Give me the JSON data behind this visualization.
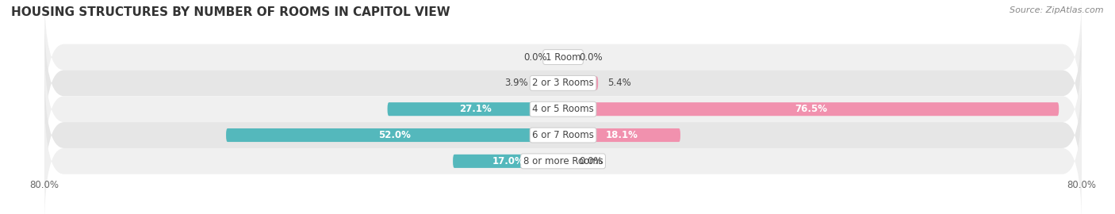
{
  "title": "HOUSING STRUCTURES BY NUMBER OF ROOMS IN CAPITOL VIEW",
  "source": "Source: ZipAtlas.com",
  "categories": [
    "1 Room",
    "2 or 3 Rooms",
    "4 or 5 Rooms",
    "6 or 7 Rooms",
    "8 or more Rooms"
  ],
  "owner_values": [
    0.0,
    3.9,
    27.1,
    52.0,
    17.0
  ],
  "renter_values": [
    0.0,
    5.4,
    76.5,
    18.1,
    0.0
  ],
  "owner_color": "#54b8bc",
  "renter_color": "#f191ae",
  "row_bg_even": "#f0f0f0",
  "row_bg_odd": "#e6e6e6",
  "xlim_min": -80,
  "xlim_max": 80,
  "bar_height": 0.52,
  "title_fontsize": 11,
  "label_fontsize": 8.5,
  "tick_fontsize": 8.5,
  "legend_fontsize": 9
}
